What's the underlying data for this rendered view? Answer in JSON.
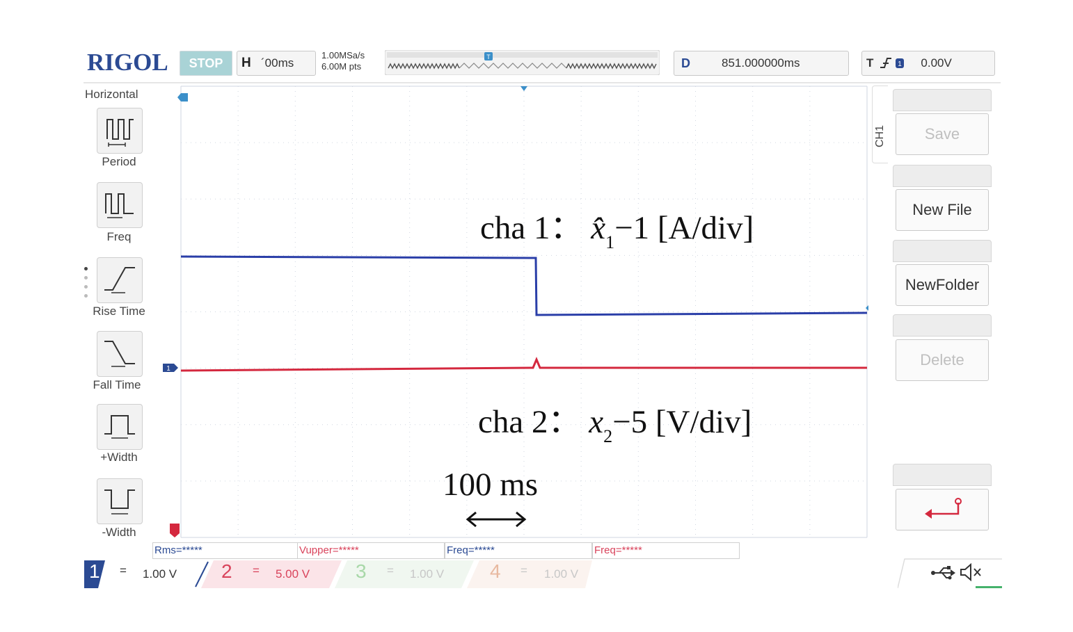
{
  "header": {
    "logo": "RIGOL",
    "run_state": "STOP",
    "horizontal_label": "H",
    "horizontal_value": "´00ms",
    "sample_rate": "1.00MSa/s",
    "memory_depth": "6.00M pts",
    "delay_label": "D",
    "delay_value": "851.000000ms",
    "trigger_label": "T",
    "trigger_level": "0.00V"
  },
  "left_menu": {
    "title": "Horizontal",
    "items": [
      {
        "label": "Period",
        "icon": "period-icon"
      },
      {
        "label": "Freq",
        "icon": "freq-icon"
      },
      {
        "label": "Rise Time",
        "icon": "rise-time-icon"
      },
      {
        "label": "Fall Time",
        "icon": "fall-time-icon"
      },
      {
        "label": "+Width",
        "icon": "positive-width-icon"
      },
      {
        "label": "-Width",
        "icon": "negative-width-icon"
      }
    ]
  },
  "right_menu": {
    "channel_tab": "CH1",
    "keys": [
      {
        "label": "Save",
        "enabled": false
      },
      {
        "label": "New File",
        "enabled": true
      },
      {
        "label": "NewFolder",
        "enabled": true
      },
      {
        "label": "Delete",
        "enabled": false
      },
      {
        "label": "",
        "icon": "return-arrow-icon",
        "enabled": true
      }
    ]
  },
  "annotations": {
    "cha1_prefix": "cha 1： ",
    "cha1_var": "x̂",
    "cha1_sub": "1",
    "cha1_rest": "−1 [A/div]",
    "cha2_prefix": "cha 2： ",
    "cha2_var": "x",
    "cha2_sub": "2",
    "cha2_rest": "−5 [V/div]",
    "time_scale": "100 ms"
  },
  "markers": {
    "ch1_label": "1",
    "ch2_label": "T",
    "trigger_label": "T"
  },
  "measurements": [
    {
      "text": "Rms=*****",
      "channel": 1
    },
    {
      "text": "Vupper=*****",
      "channel": 2
    },
    {
      "text": "Freq=*****",
      "channel": 1
    },
    {
      "text": "Freq=*****",
      "channel": 2
    }
  ],
  "channels": [
    {
      "num": "1",
      "coupling": "=",
      "scale": "1.00 V",
      "color": "#2b4a93",
      "active": true
    },
    {
      "num": "2",
      "coupling": "=",
      "scale": "5.00 V",
      "color": "#d9435b",
      "active": true
    },
    {
      "num": "3",
      "coupling": "=",
      "scale": "1.00 V",
      "color": "#a8d8a8",
      "active": false
    },
    {
      "num": "4",
      "coupling": "=",
      "scale": "1.00 V",
      "color": "#e8b9a0",
      "active": false
    }
  ],
  "status_icons": [
    "usb-icon",
    "speaker-muted-icon"
  ],
  "trace_colors": {
    "blue": "#2a3ea8",
    "red": "#d4283e"
  }
}
